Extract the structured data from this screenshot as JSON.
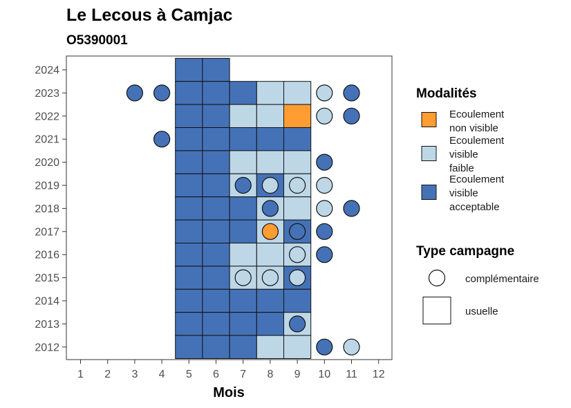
{
  "chart_data": {
    "type": "heatmap",
    "title": "Le Lecous à Camjac",
    "subtitle": "O5390001",
    "xlabel": "Mois",
    "ylabel": "",
    "x_ticks": [
      "1",
      "2",
      "3",
      "4",
      "5",
      "6",
      "7",
      "8",
      "9",
      "10",
      "11",
      "12"
    ],
    "y_ticks": [
      "2012",
      "2013",
      "2014",
      "2015",
      "2016",
      "2017",
      "2018",
      "2019",
      "2020",
      "2021",
      "2022",
      "2023",
      "2024"
    ],
    "colors": {
      "Ecoulement non visible": "#FF9C32",
      "Ecoulement visible faible": "#BDD7E7",
      "Ecoulement visible acceptable": "#4572B7"
    },
    "legend_modalites": {
      "title": "Modalités",
      "items": [
        {
          "key": "Ecoulement non visible",
          "lines": [
            "Ecoulement",
            "non visible"
          ]
        },
        {
          "key": "Ecoulement visible faible",
          "lines": [
            "Ecoulement",
            "visible",
            "faible"
          ]
        },
        {
          "key": "Ecoulement visible acceptable",
          "lines": [
            "Ecoulement",
            "visible",
            "acceptable"
          ]
        }
      ]
    },
    "legend_type": {
      "title": "Type campagne",
      "items": [
        {
          "shape": "circle",
          "label": "complémentaire"
        },
        {
          "shape": "square",
          "label": "usuelle"
        }
      ]
    },
    "usuelle": [
      {
        "year": 2024,
        "month": 5,
        "m": "Ecoulement visible acceptable"
      },
      {
        "year": 2024,
        "month": 6,
        "m": "Ecoulement visible acceptable"
      },
      {
        "year": 2023,
        "month": 5,
        "m": "Ecoulement visible acceptable"
      },
      {
        "year": 2023,
        "month": 6,
        "m": "Ecoulement visible acceptable"
      },
      {
        "year": 2023,
        "month": 7,
        "m": "Ecoulement visible acceptable"
      },
      {
        "year": 2023,
        "month": 8,
        "m": "Ecoulement visible faible"
      },
      {
        "year": 2023,
        "month": 9,
        "m": "Ecoulement visible faible"
      },
      {
        "year": 2022,
        "month": 5,
        "m": "Ecoulement visible acceptable"
      },
      {
        "year": 2022,
        "month": 6,
        "m": "Ecoulement visible acceptable"
      },
      {
        "year": 2022,
        "month": 7,
        "m": "Ecoulement visible faible"
      },
      {
        "year": 2022,
        "month": 8,
        "m": "Ecoulement visible faible"
      },
      {
        "year": 2022,
        "month": 9,
        "m": "Ecoulement non visible"
      },
      {
        "year": 2021,
        "month": 5,
        "m": "Ecoulement visible acceptable"
      },
      {
        "year": 2021,
        "month": 6,
        "m": "Ecoulement visible acceptable"
      },
      {
        "year": 2021,
        "month": 7,
        "m": "Ecoulement visible acceptable"
      },
      {
        "year": 2021,
        "month": 8,
        "m": "Ecoulement visible acceptable"
      },
      {
        "year": 2021,
        "month": 9,
        "m": "Ecoulement visible acceptable"
      },
      {
        "year": 2020,
        "month": 5,
        "m": "Ecoulement visible acceptable"
      },
      {
        "year": 2020,
        "month": 6,
        "m": "Ecoulement visible acceptable"
      },
      {
        "year": 2020,
        "month": 7,
        "m": "Ecoulement visible faible"
      },
      {
        "year": 2020,
        "month": 8,
        "m": "Ecoulement visible faible"
      },
      {
        "year": 2020,
        "month": 9,
        "m": "Ecoulement visible faible"
      },
      {
        "year": 2019,
        "month": 5,
        "m": "Ecoulement visible acceptable"
      },
      {
        "year": 2019,
        "month": 6,
        "m": "Ecoulement visible acceptable"
      },
      {
        "year": 2019,
        "month": 7,
        "m": "Ecoulement visible faible"
      },
      {
        "year": 2019,
        "month": 8,
        "m": "Ecoulement visible acceptable"
      },
      {
        "year": 2019,
        "month": 9,
        "m": "Ecoulement visible faible"
      },
      {
        "year": 2018,
        "month": 5,
        "m": "Ecoulement visible acceptable"
      },
      {
        "year": 2018,
        "month": 6,
        "m": "Ecoulement visible acceptable"
      },
      {
        "year": 2018,
        "month": 7,
        "m": "Ecoulement visible acceptable"
      },
      {
        "year": 2018,
        "month": 8,
        "m": "Ecoulement visible faible"
      },
      {
        "year": 2018,
        "month": 9,
        "m": "Ecoulement visible faible"
      },
      {
        "year": 2017,
        "month": 5,
        "m": "Ecoulement visible acceptable"
      },
      {
        "year": 2017,
        "month": 6,
        "m": "Ecoulement visible acceptable"
      },
      {
        "year": 2017,
        "month": 7,
        "m": "Ecoulement visible acceptable"
      },
      {
        "year": 2017,
        "month": 8,
        "m": "Ecoulement visible faible"
      },
      {
        "year": 2017,
        "month": 9,
        "m": "Ecoulement visible acceptable"
      },
      {
        "year": 2016,
        "month": 5,
        "m": "Ecoulement visible acceptable"
      },
      {
        "year": 2016,
        "month": 6,
        "m": "Ecoulement visible acceptable"
      },
      {
        "year": 2016,
        "month": 7,
        "m": "Ecoulement visible faible"
      },
      {
        "year": 2016,
        "month": 8,
        "m": "Ecoulement visible faible"
      },
      {
        "year": 2016,
        "month": 9,
        "m": "Ecoulement visible faible"
      },
      {
        "year": 2015,
        "month": 5,
        "m": "Ecoulement visible acceptable"
      },
      {
        "year": 2015,
        "month": 6,
        "m": "Ecoulement visible acceptable"
      },
      {
        "year": 2015,
        "month": 7,
        "m": "Ecoulement visible faible"
      },
      {
        "year": 2015,
        "month": 8,
        "m": "Ecoulement visible faible"
      },
      {
        "year": 2015,
        "month": 9,
        "m": "Ecoulement visible acceptable"
      },
      {
        "year": 2014,
        "month": 5,
        "m": "Ecoulement visible acceptable"
      },
      {
        "year": 2014,
        "month": 6,
        "m": "Ecoulement visible acceptable"
      },
      {
        "year": 2014,
        "month": 7,
        "m": "Ecoulement visible acceptable"
      },
      {
        "year": 2014,
        "month": 8,
        "m": "Ecoulement visible acceptable"
      },
      {
        "year": 2014,
        "month": 9,
        "m": "Ecoulement visible acceptable"
      },
      {
        "year": 2013,
        "month": 5,
        "m": "Ecoulement visible acceptable"
      },
      {
        "year": 2013,
        "month": 6,
        "m": "Ecoulement visible acceptable"
      },
      {
        "year": 2013,
        "month": 7,
        "m": "Ecoulement visible acceptable"
      },
      {
        "year": 2013,
        "month": 8,
        "m": "Ecoulement visible acceptable"
      },
      {
        "year": 2013,
        "month": 9,
        "m": "Ecoulement visible faible"
      },
      {
        "year": 2012,
        "month": 5,
        "m": "Ecoulement visible acceptable"
      },
      {
        "year": 2012,
        "month": 6,
        "m": "Ecoulement visible acceptable"
      },
      {
        "year": 2012,
        "month": 7,
        "m": "Ecoulement visible acceptable"
      },
      {
        "year": 2012,
        "month": 8,
        "m": "Ecoulement visible faible"
      },
      {
        "year": 2012,
        "month": 9,
        "m": "Ecoulement visible faible"
      }
    ],
    "complementaire": [
      {
        "year": 2023,
        "month": 3,
        "m": "Ecoulement visible acceptable"
      },
      {
        "year": 2023,
        "month": 4,
        "m": "Ecoulement visible acceptable"
      },
      {
        "year": 2023,
        "month": 10,
        "m": "Ecoulement visible faible"
      },
      {
        "year": 2023,
        "month": 11,
        "m": "Ecoulement visible acceptable"
      },
      {
        "year": 2022,
        "month": 10,
        "m": "Ecoulement visible faible"
      },
      {
        "year": 2022,
        "month": 11,
        "m": "Ecoulement visible acceptable"
      },
      {
        "year": 2021,
        "month": 4,
        "m": "Ecoulement visible acceptable"
      },
      {
        "year": 2020,
        "month": 10,
        "m": "Ecoulement visible acceptable"
      },
      {
        "year": 2019,
        "month": 7,
        "m": "Ecoulement visible acceptable"
      },
      {
        "year": 2019,
        "month": 8,
        "m": "Ecoulement visible faible"
      },
      {
        "year": 2019,
        "month": 9,
        "m": "Ecoulement visible faible"
      },
      {
        "year": 2019,
        "month": 10,
        "m": "Ecoulement visible faible"
      },
      {
        "year": 2018,
        "month": 8,
        "m": "Ecoulement visible acceptable"
      },
      {
        "year": 2018,
        "month": 10,
        "m": "Ecoulement visible faible"
      },
      {
        "year": 2018,
        "month": 11,
        "m": "Ecoulement visible acceptable"
      },
      {
        "year": 2017,
        "month": 8,
        "m": "Ecoulement non visible"
      },
      {
        "year": 2017,
        "month": 9,
        "m": "Ecoulement visible acceptable"
      },
      {
        "year": 2017,
        "month": 10,
        "m": "Ecoulement visible acceptable"
      },
      {
        "year": 2016,
        "month": 9,
        "m": "Ecoulement visible faible"
      },
      {
        "year": 2016,
        "month": 10,
        "m": "Ecoulement visible acceptable"
      },
      {
        "year": 2015,
        "month": 7,
        "m": "Ecoulement visible faible"
      },
      {
        "year": 2015,
        "month": 8,
        "m": "Ecoulement visible faible"
      },
      {
        "year": 2015,
        "month": 9,
        "m": "Ecoulement visible faible"
      },
      {
        "year": 2013,
        "month": 9,
        "m": "Ecoulement visible acceptable"
      },
      {
        "year": 2012,
        "month": 10,
        "m": "Ecoulement visible acceptable"
      },
      {
        "year": 2012,
        "month": 11,
        "m": "Ecoulement visible faible"
      }
    ]
  }
}
